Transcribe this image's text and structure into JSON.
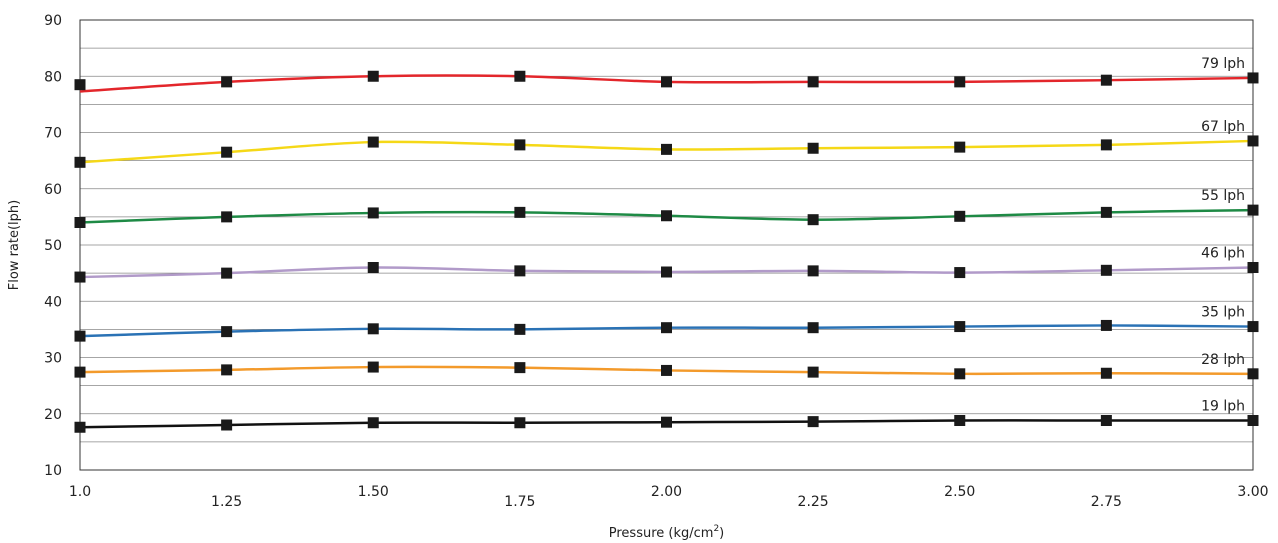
{
  "chart_data": {
    "type": "line",
    "title": "",
    "xlabel": "Pressure (kg/cm",
    "xlabel_sup": "2",
    "xlabel_suffix": ")",
    "ylabel": "Flow rate(lph)",
    "xlim": [
      1.0,
      3.0
    ],
    "ylim": [
      10,
      90
    ],
    "grid": true,
    "x": [
      1.0,
      1.25,
      1.5,
      1.75,
      2.0,
      2.25,
      2.5,
      2.75,
      3.0
    ],
    "x_tick_labels": [
      "1.0",
      "1.25",
      "1.50",
      "1.75",
      "2.00",
      "2.25",
      "2.50",
      "2.75",
      "3.00"
    ],
    "y_ticks": [
      10,
      20,
      30,
      40,
      50,
      60,
      70,
      80,
      90
    ],
    "y_tick_labels": [
      "10",
      "20",
      "30",
      "40",
      "50",
      "60",
      "70",
      "80",
      "90"
    ],
    "series": [
      {
        "name": "79 lph",
        "color": "#e3262b",
        "values": [
          78.5,
          79.0,
          80.0,
          80.0,
          79.0,
          79.0,
          79.0,
          79.3,
          79.7
        ],
        "line_start": 77.3
      },
      {
        "name": "67 lph",
        "color": "#f5d817",
        "values": [
          64.7,
          66.5,
          68.3,
          67.8,
          67.0,
          67.2,
          67.4,
          67.8,
          68.5
        ]
      },
      {
        "name": "55 lph",
        "color": "#1e8a45",
        "values": [
          54.0,
          55.0,
          55.7,
          55.8,
          55.2,
          54.5,
          55.1,
          55.8,
          56.2
        ]
      },
      {
        "name": "46 lph",
        "color": "#b19ac9",
        "values": [
          44.3,
          45.0,
          46.0,
          45.4,
          45.2,
          45.4,
          45.1,
          45.5,
          46.0
        ]
      },
      {
        "name": "35 lph",
        "color": "#2a72b5",
        "values": [
          33.8,
          34.6,
          35.1,
          35.0,
          35.3,
          35.3,
          35.5,
          35.7,
          35.5
        ]
      },
      {
        "name": "28 lph",
        "color": "#f39a2b",
        "values": [
          27.4,
          27.8,
          28.3,
          28.2,
          27.7,
          27.4,
          27.1,
          27.2,
          27.1
        ]
      },
      {
        "name": "19 lph",
        "color": "#111111",
        "values": [
          17.6,
          18.0,
          18.4,
          18.4,
          18.5,
          18.6,
          18.8,
          18.8,
          18.8
        ]
      }
    ]
  }
}
